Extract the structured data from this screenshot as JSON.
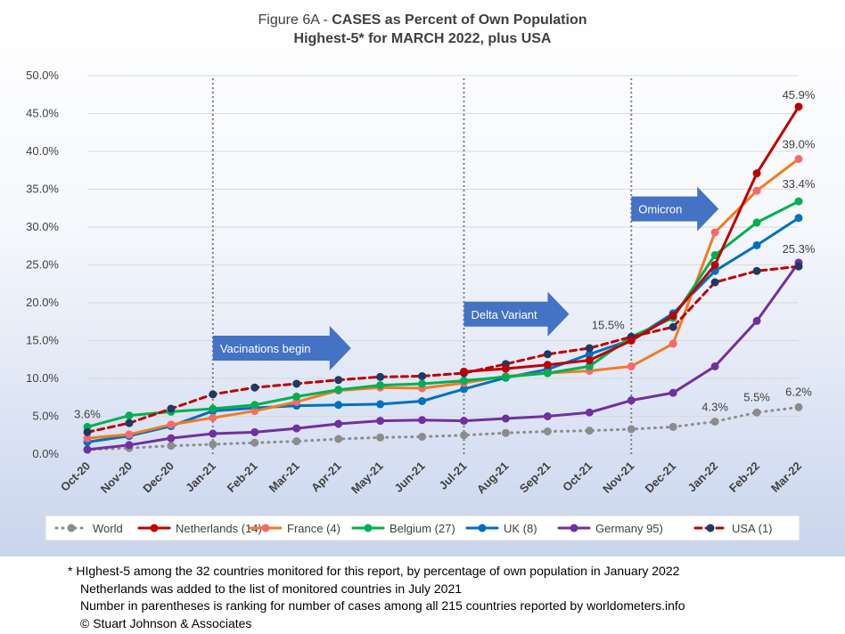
{
  "title": {
    "line1_prefix": "Figure 6A - ",
    "line1_bold": "CASES as Percent of Own Population",
    "line2": "Highest-5* for MARCH 2022, plus USA"
  },
  "footnotes": [
    "* HIghest-5 among the 32 countries monitored for this report, by percentage of own population in January 2022",
    "Netherlands was added to the list of monitored countries in July 2021",
    "Number in parentheses is ranking for number of cases among all 215 countries reported by worldometers.info",
    "© Stuart Johnson & Associates"
  ],
  "chart_data": {
    "type": "line",
    "categories": [
      "Oct-20",
      "Nov-20",
      "Dec-20",
      "Jan-21",
      "Feb-21",
      "Mar-21",
      "Apr-21",
      "May-21",
      "Jun-21",
      "Jul-21",
      "Aug-21",
      "Sep-21",
      "Oct-21",
      "Nov-21",
      "Dec-21",
      "Jan-22",
      "Feb-22",
      "Mar-22"
    ],
    "ylim": [
      0,
      50
    ],
    "yticks": [
      "0.0%",
      "5.0%",
      "10.0%",
      "15.0%",
      "20.0%",
      "25.0%",
      "30.0%",
      "35.0%",
      "40.0%",
      "45.0%",
      "50.0%"
    ],
    "grid": true,
    "legend_position": "bottom",
    "vertical_markers": [
      "Jan-21",
      "Jul-21",
      "Nov-21"
    ],
    "series": [
      {
        "name": "World",
        "color": "#8c8c8c",
        "style": "dotted",
        "values": [
          0.6,
          0.8,
          1.1,
          1.3,
          1.5,
          1.7,
          2.0,
          2.2,
          2.3,
          2.5,
          2.8,
          3.0,
          3.1,
          3.3,
          3.6,
          4.3,
          5.5,
          6.2
        ]
      },
      {
        "name": "Netherlands (14)",
        "color": "#c00000",
        "style": "solid",
        "values": [
          null,
          null,
          null,
          null,
          null,
          null,
          null,
          null,
          null,
          10.9,
          11.3,
          11.8,
          12.4,
          15.0,
          18.3,
          25.0,
          37.1,
          45.9
        ]
      },
      {
        "name": "France (4)",
        "color": "#f27b21",
        "style": "solid",
        "marker_color": "#f8696b",
        "values": [
          2.1,
          2.6,
          3.9,
          4.8,
          5.7,
          6.9,
          8.4,
          8.8,
          8.7,
          9.4,
          10.3,
          10.7,
          11.0,
          11.6,
          14.6,
          29.3,
          34.8,
          39.0
        ]
      },
      {
        "name": "Belgium (27)",
        "color": "#00b050",
        "style": "solid",
        "values": [
          3.6,
          5.1,
          5.6,
          6.0,
          6.5,
          7.6,
          8.5,
          9.1,
          9.3,
          9.7,
          10.2,
          10.7,
          11.6,
          15.5,
          18.0,
          26.3,
          30.6,
          33.4
        ]
      },
      {
        "name": "UK (8)",
        "color": "#0070c0",
        "style": "solid",
        "values": [
          1.6,
          2.4,
          3.7,
          5.7,
          6.1,
          6.4,
          6.5,
          6.6,
          7.0,
          8.6,
          10.1,
          11.2,
          13.2,
          15.1,
          18.6,
          24.2,
          27.6,
          31.2
        ]
      },
      {
        "name": "Germany 95)",
        "color": "#7030a0",
        "style": "solid",
        "values": [
          0.6,
          1.2,
          2.1,
          2.7,
          2.9,
          3.4,
          4.0,
          4.4,
          4.5,
          4.4,
          4.7,
          5.0,
          5.5,
          7.1,
          8.1,
          11.6,
          17.6,
          25.3
        ]
      },
      {
        "name": "USA (1)",
        "color": "#c00000",
        "style": "dashed",
        "marker_color": "#1f3864",
        "values": [
          2.9,
          4.1,
          6.0,
          7.9,
          8.8,
          9.3,
          9.8,
          10.2,
          10.3,
          10.7,
          11.9,
          13.2,
          14.0,
          15.5,
          16.8,
          22.7,
          24.2,
          24.8
        ]
      }
    ],
    "data_labels": [
      {
        "text": "3.6%",
        "category": "Oct-20",
        "value": 3.6
      },
      {
        "text": "4.3%",
        "category": "Jan-22",
        "value": 4.3
      },
      {
        "text": "5.5%",
        "category": "Feb-22",
        "value": 5.5
      },
      {
        "text": "6.2%",
        "category": "Mar-22",
        "value": 6.2
      },
      {
        "text": "15.5%",
        "category": "Nov-21",
        "value": 15.5
      },
      {
        "text": "25.3%",
        "category": "Mar-22",
        "value": 25.3
      },
      {
        "text": "33.4%",
        "category": "Mar-22",
        "value": 33.4
      },
      {
        "text": "39.0%",
        "category": "Mar-22",
        "value": 39.0
      },
      {
        "text": "45.9%",
        "category": "Mar-22",
        "value": 45.9
      }
    ],
    "annotations": [
      {
        "text": "Vacinations begin",
        "category": "Jan-21",
        "value": 14.0
      },
      {
        "text": "Delta Variant",
        "category": "Jul-21",
        "value": 18.5
      },
      {
        "text": "Omicron",
        "category": "Nov-21",
        "value": 32.4
      }
    ]
  },
  "colors": {
    "arrow_fill": "#4472c4",
    "gridline": "#d9d9d9",
    "marker_line": "#808080"
  }
}
